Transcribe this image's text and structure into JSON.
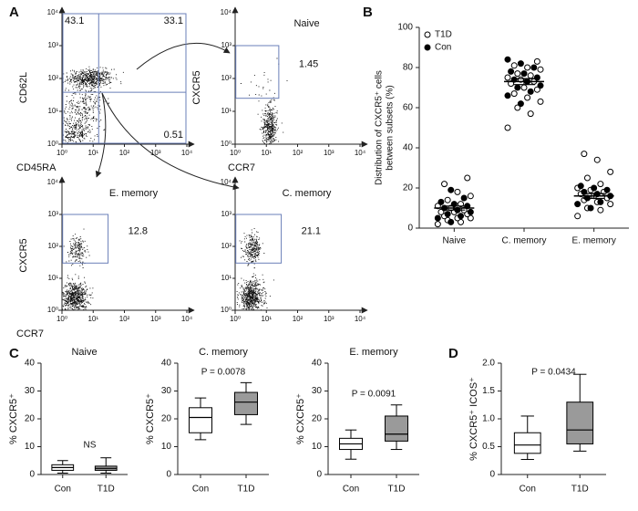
{
  "chart_data": [
    {
      "type": "flow",
      "label": "A",
      "xlabel": "CD45RA",
      "ylabel": "CD62L",
      "log": true,
      "xlim": [
        1,
        10000
      ],
      "ylim": [
        1,
        10000
      ],
      "xticks": [
        {
          "value": 1,
          "label": "10⁰"
        },
        {
          "value": 10,
          "label": "10¹"
        },
        {
          "value": 100,
          "label": "10²"
        },
        {
          "value": 1000,
          "label": "10³"
        },
        {
          "value": 10000,
          "label": "10⁴"
        }
      ],
      "yticks": [
        {
          "value": 1,
          "label": "10⁰"
        },
        {
          "value": 10,
          "label": "10¹"
        },
        {
          "value": 100,
          "label": "10²"
        },
        {
          "value": 1000,
          "label": "10³"
        },
        {
          "value": 10000,
          "label": "10⁴"
        }
      ],
      "gates": [
        43.1,
        33.1,
        23.4,
        0.51
      ]
    },
    {
      "type": "flow",
      "title": "Naive",
      "xlabel": "CCR7",
      "ylabel": "CXCR5",
      "log": true,
      "xlim": [
        1,
        10000
      ],
      "ylim": [
        1,
        10000
      ],
      "xticks": [
        {
          "value": 1,
          "label": "10⁰"
        },
        {
          "value": 10,
          "label": "10¹"
        },
        {
          "value": 100,
          "label": "10²"
        },
        {
          "value": 1000,
          "label": "10³"
        },
        {
          "value": 10000,
          "label": "10⁴"
        }
      ],
      "yticks": [
        {
          "value": 1,
          "label": "10⁰"
        },
        {
          "value": 10,
          "label": "10¹"
        },
        {
          "value": 100,
          "label": "10²"
        },
        {
          "value": 1000,
          "label": "10³"
        },
        {
          "value": 10000,
          "label": "10⁴"
        }
      ],
      "gates": [
        1.45
      ]
    },
    {
      "type": "flow",
      "title": "E. memory",
      "xlabel": "CCR7",
      "ylabel": "CXCR5",
      "log": true,
      "xlim": [
        1,
        10000
      ],
      "ylim": [
        1,
        10000
      ],
      "xticks": [
        {
          "value": 1,
          "label": "10⁰"
        },
        {
          "value": 10,
          "label": "10¹"
        },
        {
          "value": 100,
          "label": "10²"
        },
        {
          "value": 1000,
          "label": "10³"
        },
        {
          "value": 10000,
          "label": "10⁴"
        }
      ],
      "yticks": [
        {
          "value": 1,
          "label": "10⁰"
        },
        {
          "value": 10,
          "label": "10¹"
        },
        {
          "value": 100,
          "label": "10²"
        },
        {
          "value": 1000,
          "label": "10³"
        },
        {
          "value": 10000,
          "label": "10⁴"
        }
      ],
      "gates": [
        12.8
      ]
    },
    {
      "type": "flow",
      "title": "C. memory",
      "log": true,
      "xlim": [
        1,
        10000
      ],
      "ylim": [
        1,
        10000
      ],
      "xticks": [
        {
          "value": 1,
          "label": "10⁰"
        },
        {
          "value": 10,
          "label": "10¹"
        },
        {
          "value": 100,
          "label": "10²"
        },
        {
          "value": 1000,
          "label": "10³"
        },
        {
          "value": 10000,
          "label": "10⁴"
        }
      ],
      "yticks": [
        {
          "value": 1,
          "label": "10⁰"
        },
        {
          "value": 10,
          "label": "10¹"
        },
        {
          "value": 100,
          "label": "10²"
        },
        {
          "value": 1000,
          "label": "10³"
        },
        {
          "value": 10000,
          "label": "10⁴"
        }
      ],
      "gates": [
        21.1
      ]
    },
    {
      "type": "dotplot",
      "label": "B",
      "ylabel": [
        "Distribution of CXCR5⁺ cells",
        "between subsets (%)"
      ],
      "categories": [
        "Naive",
        "C. memory",
        "E. memory"
      ],
      "ylim": [
        0,
        100
      ],
      "yticks": [
        0,
        20,
        40,
        60,
        80,
        100
      ],
      "series": [
        {
          "name": "T1D",
          "color": "#ffffff",
          "values": [
            [
              2,
              3,
              4,
              5,
              5,
              6,
              7,
              8,
              8,
              9,
              10,
              11,
              12,
              14,
              16,
              18,
              22,
              25
            ],
            [
              50,
              57,
              60,
              63,
              65,
              67,
              69,
              70,
              72,
              73,
              74,
              75,
              76,
              77,
              79,
              80,
              81,
              83
            ],
            [
              6,
              9,
              10,
              12,
              13,
              14,
              15,
              16,
              17,
              18,
              19,
              20,
              22,
              25,
              28,
              34,
              37
            ]
          ]
        },
        {
          "name": "Con",
          "color": "#000000",
          "values": [
            [
              3,
              5,
              6,
              7,
              8,
              9,
              10,
              11,
              12,
              13,
              15,
              19
            ],
            [
              62,
              66,
              68,
              70,
              71,
              73,
              74,
              75,
              77,
              78,
              80,
              82,
              84
            ],
            [
              10,
              12,
              13,
              15,
              16,
              17,
              18,
              19,
              20,
              21
            ]
          ]
        }
      ],
      "mean": [
        10,
        73,
        16
      ],
      "sem": [
        1,
        1.5,
        1.2
      ]
    },
    {
      "type": "box",
      "label": "C",
      "title": "Naive",
      "ylabel": "% CXCR5⁺",
      "annotation": "NS",
      "categories": [
        "Con",
        "T1D"
      ],
      "colors": [
        "#ffffff",
        "#9a9a9a"
      ],
      "ylim": [
        0,
        40
      ],
      "yticks": [
        0,
        10,
        20,
        30,
        40
      ],
      "boxes": [
        [
          0.5,
          1.5,
          2.5,
          3.5,
          5
        ],
        [
          0.5,
          1.5,
          2.2,
          3,
          6
        ]
      ]
    },
    {
      "type": "box",
      "title": "C. memory",
      "ylabel": "% CXCR5⁺",
      "annotation": "P = 0.0078",
      "categories": [
        "Con",
        "T1D"
      ],
      "colors": [
        "#ffffff",
        "#9a9a9a"
      ],
      "ylim": [
        0,
        40
      ],
      "yticks": [
        0,
        10,
        20,
        30,
        40
      ],
      "boxes": [
        [
          12.5,
          15,
          20.5,
          24,
          27.5
        ],
        [
          18,
          21.5,
          26,
          29.5,
          33
        ]
      ]
    },
    {
      "type": "box",
      "title": "E. memory",
      "ylabel": "% CXCR5⁺",
      "annotation": "P = 0.0091",
      "categories": [
        "Con",
        "T1D"
      ],
      "colors": [
        "#ffffff",
        "#9a9a9a"
      ],
      "ylim": [
        0,
        40
      ],
      "yticks": [
        0,
        10,
        20,
        30,
        40
      ],
      "boxes": [
        [
          5.5,
          9,
          11,
          13,
          16
        ],
        [
          9,
          12,
          14.5,
          21,
          25
        ]
      ]
    },
    {
      "type": "box",
      "label": "D",
      "ylabel": "% CXCR5⁺ ICOS⁺",
      "annotation": "P = 0.0434",
      "categories": [
        "Con",
        "T1D"
      ],
      "colors": [
        "#ffffff",
        "#9a9a9a"
      ],
      "ylim": [
        0,
        2
      ],
      "yticks": [
        0,
        0.5,
        {
          "value": 1,
          "label": "1.0"
        },
        1.5,
        {
          "value": 2,
          "label": "2.0"
        }
      ],
      "boxes": [
        [
          0.27,
          0.38,
          0.53,
          0.75,
          1.05
        ],
        [
          0.42,
          0.55,
          0.8,
          1.3,
          1.8
        ]
      ]
    }
  ]
}
